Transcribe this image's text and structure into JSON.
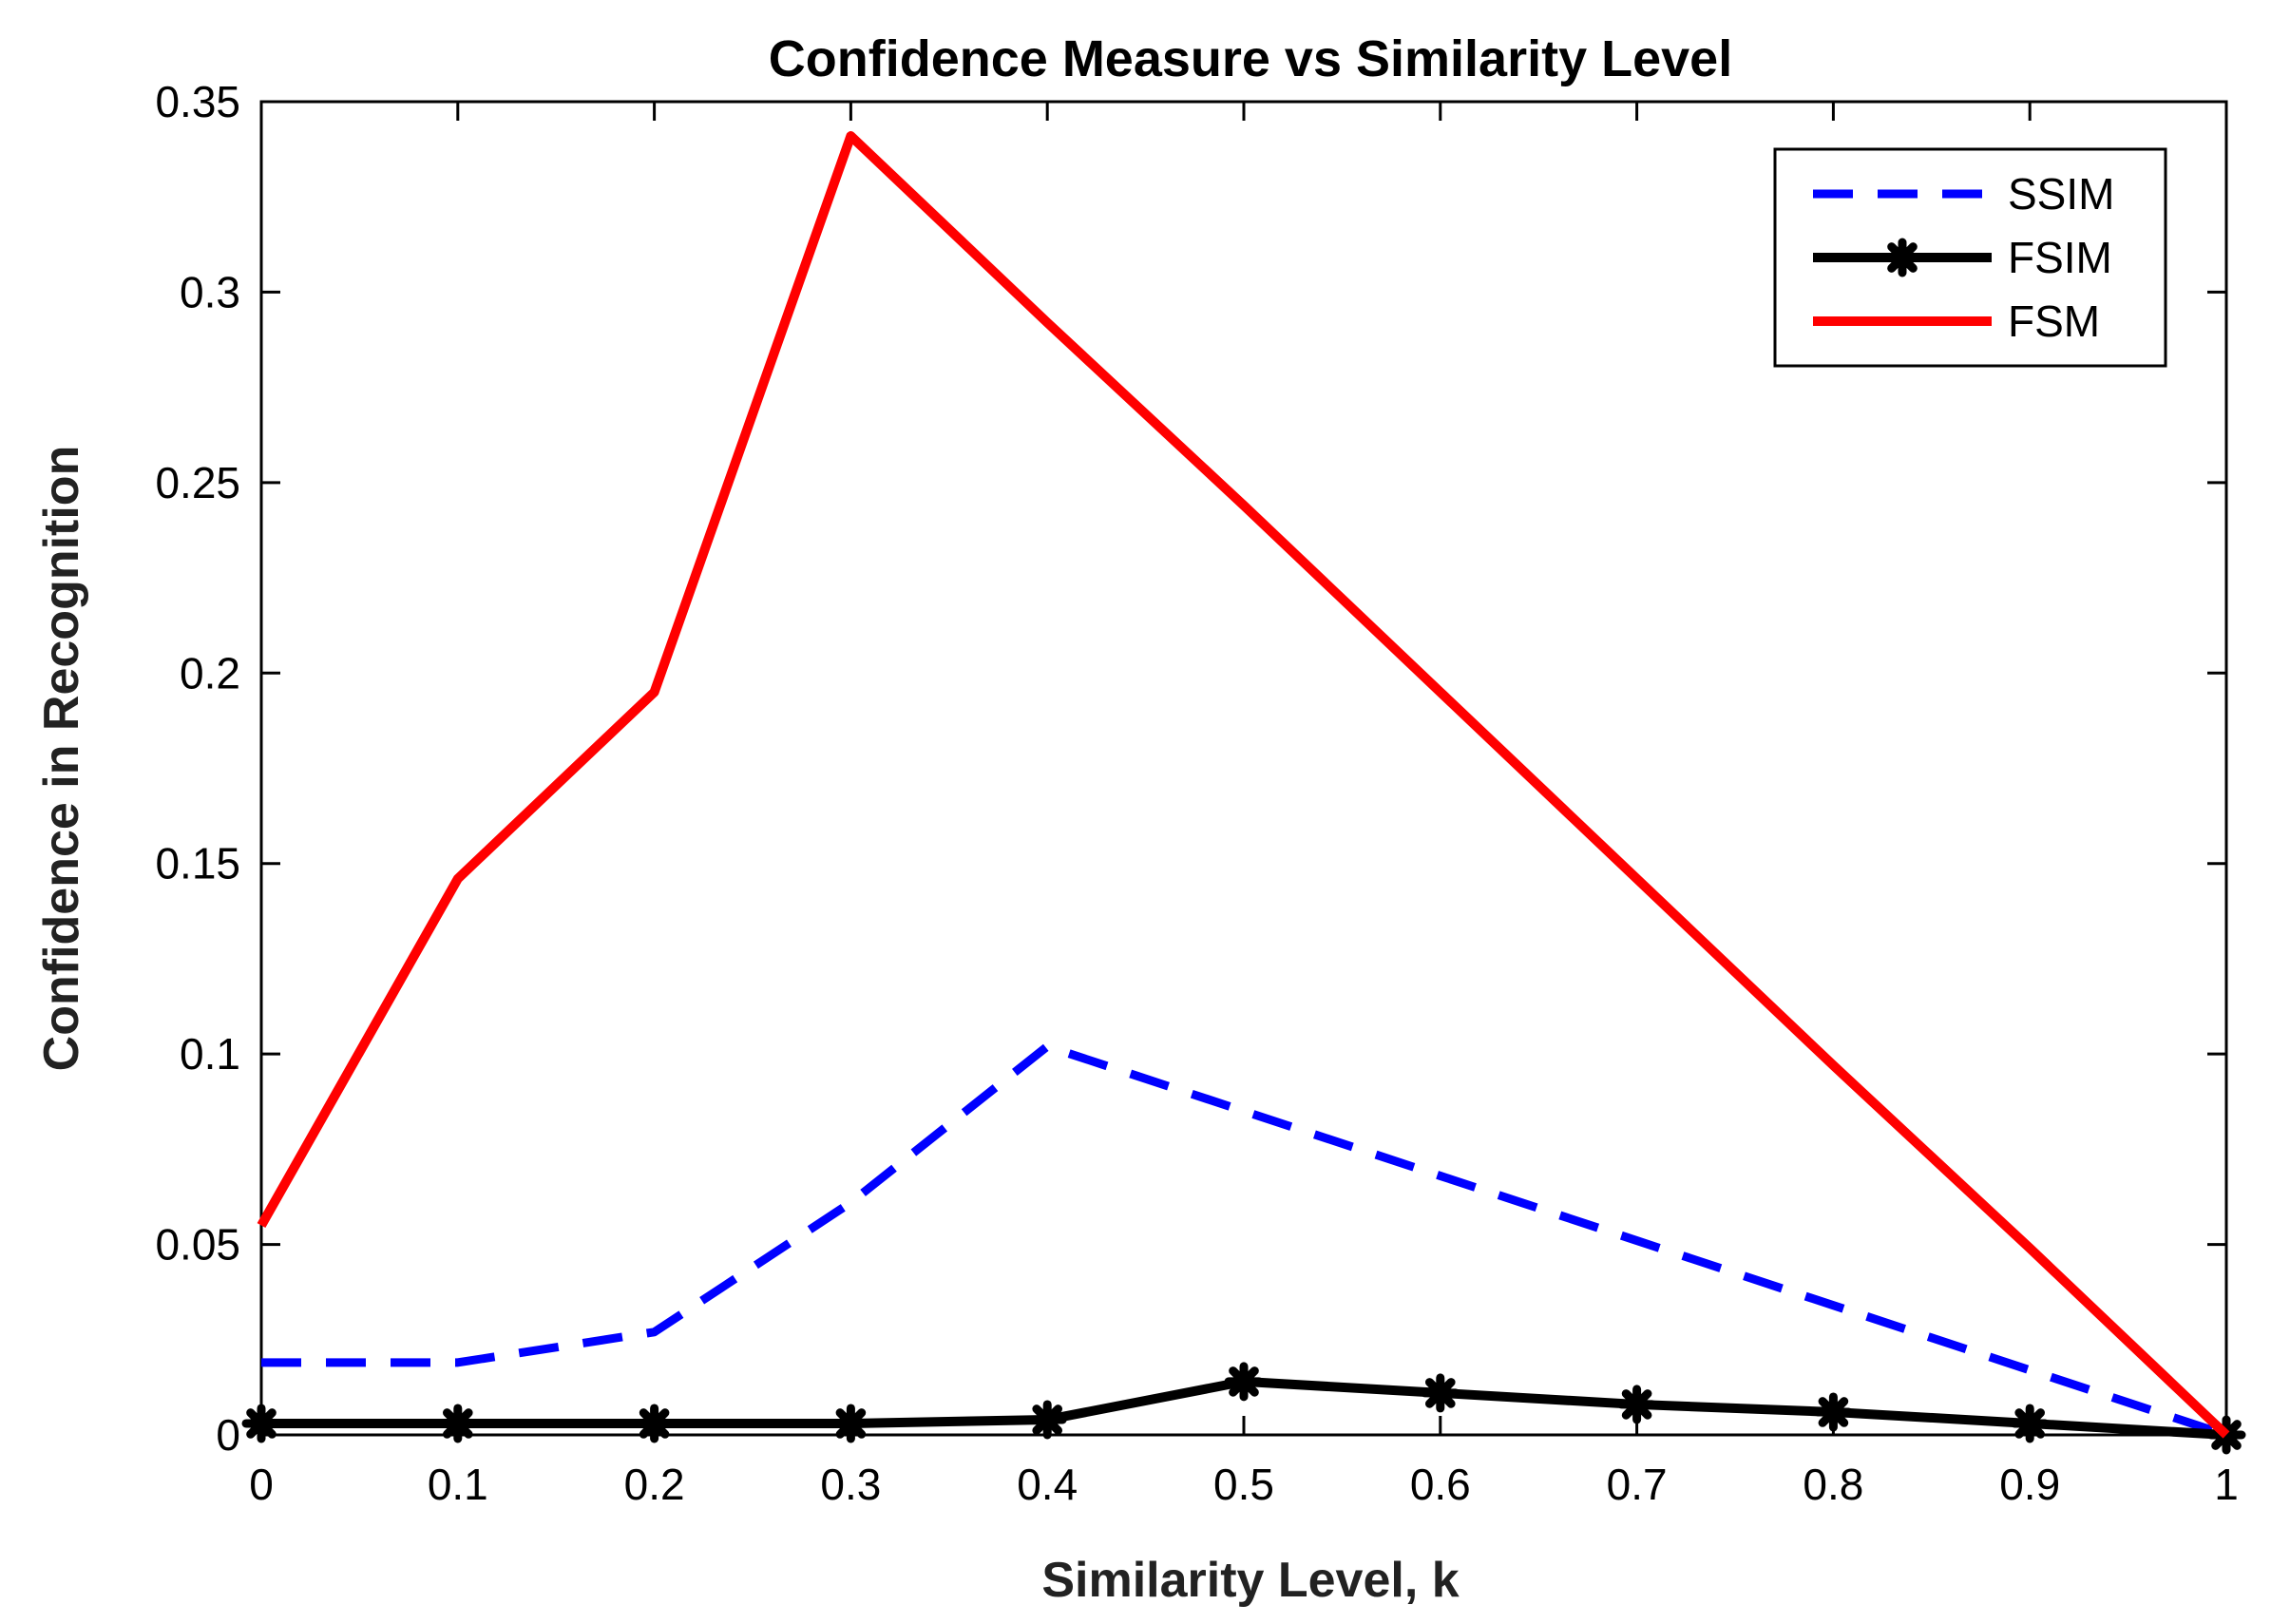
{
  "chart_data": {
    "type": "line",
    "title": "Confidence Measure vs Similarity Level",
    "xlabel": "Similarity Level, k",
    "ylabel": "Confidence in Recognition",
    "xlim": [
      0,
      1
    ],
    "ylim": [
      0,
      0.35
    ],
    "x_ticks": [
      "0",
      "0.1",
      "0.2",
      "0.3",
      "0.4",
      "0.5",
      "0.6",
      "0.7",
      "0.8",
      "0.9",
      "1"
    ],
    "y_ticks": [
      "0",
      "0.05",
      "0.1",
      "0.15",
      "0.2",
      "0.25",
      "0.3",
      "0.35"
    ],
    "legend_position": "top-right",
    "series": [
      {
        "name": "SSIM",
        "color": "#0000ff",
        "style": "dashed",
        "marker": "none",
        "x": [
          0,
          0.1,
          0.2,
          0.3,
          0.4,
          0.5,
          0.6,
          0.7,
          0.8,
          0.9,
          1
        ],
        "values": [
          0.019,
          0.019,
          0.027,
          0.061,
          0.102,
          0.085,
          0.068,
          0.051,
          0.034,
          0.017,
          0
        ]
      },
      {
        "name": "FSIM",
        "color": "#000000",
        "style": "solid",
        "marker": "asterisk",
        "x": [
          0,
          0.1,
          0.2,
          0.3,
          0.4,
          0.5,
          0.6,
          0.7,
          0.8,
          0.9,
          1
        ],
        "values": [
          0.003,
          0.003,
          0.003,
          0.003,
          0.004,
          0.014,
          0.011,
          0.008,
          0.006,
          0.003,
          0
        ]
      },
      {
        "name": "FSM",
        "color": "#ff0000",
        "style": "solid",
        "marker": "none",
        "x": [
          0,
          0.1,
          0.2,
          0.3,
          0.4,
          0.5,
          0.6,
          0.7,
          0.8,
          0.9,
          1
        ],
        "values": [
          0.055,
          0.146,
          0.195,
          0.341,
          0.292,
          0.244,
          0.195,
          0.146,
          0.097,
          0.049,
          0
        ]
      }
    ]
  }
}
